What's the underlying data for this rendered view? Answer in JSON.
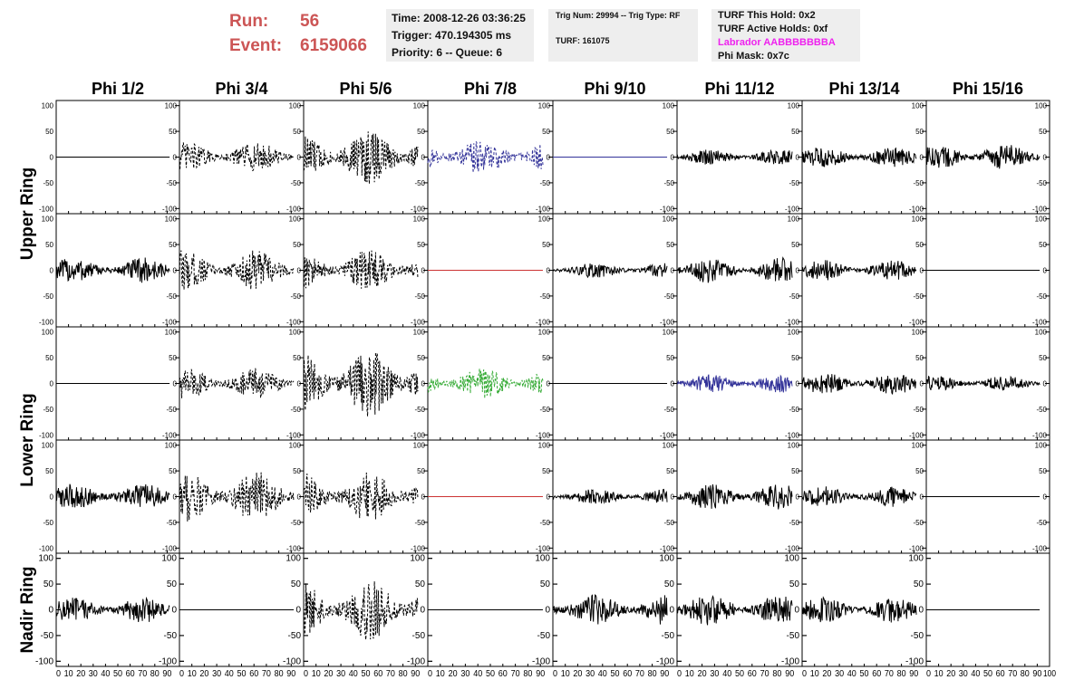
{
  "header": {
    "run_label": "Run:",
    "run_value": "56",
    "event_label": "Event:",
    "event_value": "6159066"
  },
  "info_time": {
    "time": "Time: 2008-12-26 03:36:25",
    "trigger": "Trigger: 470.194305 ms",
    "priority": "Priority: 6 -- Queue: 6"
  },
  "info_trig": {
    "trig": "Trig Num: 29994 -- Trig Type: RF",
    "turf": "TURF: 161075"
  },
  "info_turf": {
    "hold": "TURF This Hold: 0x2",
    "active": "TURF Active Holds: 0xf",
    "labrador": "Labrador AABBBBBBBA",
    "phimask": "Phi Mask: 0x7c"
  },
  "colors": {
    "header_red": "#cc5555",
    "labrador_magenta": "#ee22ee",
    "trace_black": "#000000",
    "trace_blue": "#333399",
    "trace_green": "#33aa33",
    "trace_red": "#cc3333"
  },
  "chart_data": {
    "type": "line",
    "columns": [
      "Phi 1/2",
      "Phi 3/4",
      "Phi 5/6",
      "Phi 7/8",
      "Phi 9/10",
      "Phi 11/12",
      "Phi 13/14",
      "Phi 15/16"
    ],
    "ring_labels": [
      {
        "name": "Upper Ring",
        "rows": [
          0,
          1
        ]
      },
      {
        "name": "Lower Ring",
        "rows": [
          2,
          3
        ]
      },
      {
        "name": "Nadir Ring",
        "rows": [
          4,
          4
        ]
      }
    ],
    "xlim": [
      0,
      100
    ],
    "ylim": [
      -110,
      110
    ],
    "y_ticks": [
      100,
      50,
      0,
      -50,
      -100
    ],
    "x_ticks": [
      0,
      10,
      20,
      30,
      40,
      50,
      60,
      70,
      80,
      90,
      100
    ],
    "x_tick_labels": [
      "0",
      "10",
      "20",
      "30",
      "40",
      "50",
      "60",
      "70",
      "80",
      "90",
      "100"
    ],
    "y_axis_right_rows": [
      0,
      1,
      2,
      3
    ],
    "y_axis_left_rows": [
      4
    ],
    "traces": [
      [
        {
          "amp": 0,
          "style": "flat",
          "color": "#000000"
        },
        {
          "amp": 30,
          "style": "dashed",
          "color": "#000000"
        },
        {
          "amp": 55,
          "style": "dashed",
          "color": "#000000"
        },
        {
          "amp": 35,
          "style": "dashed",
          "color": "#333399"
        },
        {
          "amp": 0,
          "style": "flat",
          "color": "#333399"
        },
        {
          "amp": 15,
          "style": "solid",
          "color": "#000000"
        },
        {
          "amp": 20,
          "style": "solid",
          "color": "#000000"
        },
        {
          "amp": 25,
          "style": "solid",
          "color": "#000000"
        }
      ],
      [
        {
          "amp": 25,
          "style": "solid",
          "color": "#000000"
        },
        {
          "amp": 40,
          "style": "dashed",
          "color": "#000000"
        },
        {
          "amp": 40,
          "style": "dashed",
          "color": "#000000"
        },
        {
          "amp": 0,
          "style": "flat",
          "color": "#cc3333"
        },
        {
          "amp": 15,
          "style": "solid",
          "color": "#000000"
        },
        {
          "amp": 25,
          "style": "solid",
          "color": "#000000"
        },
        {
          "amp": 20,
          "style": "solid",
          "color": "#000000"
        },
        {
          "amp": 0,
          "style": "flat",
          "color": "#000000"
        }
      ],
      [
        {
          "amp": 0,
          "style": "flat",
          "color": "#000000"
        },
        {
          "amp": 30,
          "style": "dashed",
          "color": "#000000"
        },
        {
          "amp": 65,
          "style": "dashed",
          "color": "#000000"
        },
        {
          "amp": 30,
          "style": "dashed",
          "color": "#33aa33"
        },
        {
          "amp": 0,
          "style": "flat",
          "color": "#000000"
        },
        {
          "amp": 18,
          "style": "solid",
          "color": "#333399"
        },
        {
          "amp": 22,
          "style": "solid",
          "color": "#000000"
        },
        {
          "amp": 15,
          "style": "solid",
          "color": "#000000"
        }
      ],
      [
        {
          "amp": 25,
          "style": "solid",
          "color": "#000000"
        },
        {
          "amp": 50,
          "style": "dashed",
          "color": "#000000"
        },
        {
          "amp": 50,
          "style": "dashed",
          "color": "#000000"
        },
        {
          "amp": 0,
          "style": "flat",
          "color": "#cc3333"
        },
        {
          "amp": 15,
          "style": "solid",
          "color": "#000000"
        },
        {
          "amp": 25,
          "style": "solid",
          "color": "#000000"
        },
        {
          "amp": 20,
          "style": "solid",
          "color": "#000000"
        },
        {
          "amp": 0,
          "style": "flat",
          "color": "#000000"
        }
      ],
      [
        {
          "amp": 25,
          "style": "solid",
          "color": "#000000"
        },
        {
          "amp": 0,
          "style": "flat",
          "color": "#000000"
        },
        {
          "amp": 60,
          "style": "dashed",
          "color": "#000000"
        },
        {
          "amp": 0,
          "style": "flat",
          "color": "#000000"
        },
        {
          "amp": 30,
          "style": "solid",
          "color": "#000000"
        },
        {
          "amp": 30,
          "style": "solid",
          "color": "#000000"
        },
        {
          "amp": 25,
          "style": "solid",
          "color": "#000000"
        },
        {
          "amp": 0,
          "style": "flat",
          "color": "#000000"
        }
      ]
    ]
  }
}
